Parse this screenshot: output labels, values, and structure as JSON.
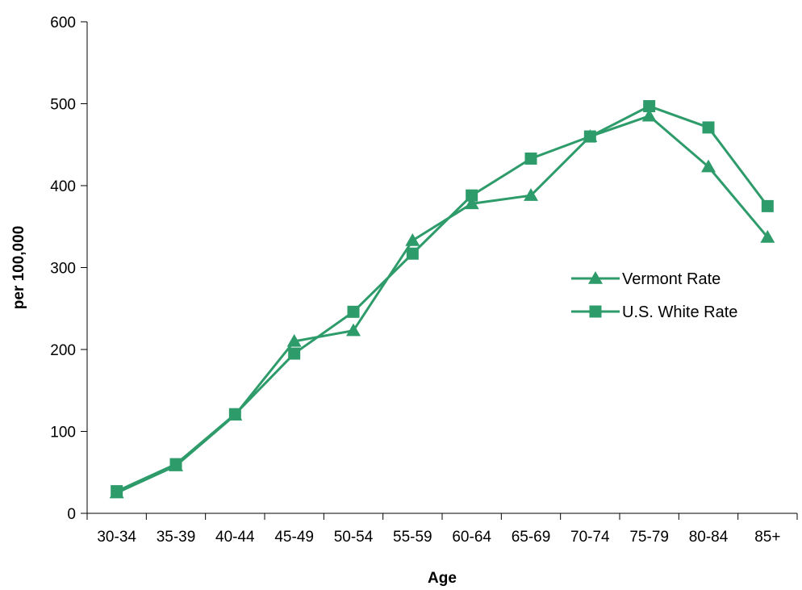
{
  "chart_data": {
    "type": "line",
    "xlabel": "Age",
    "ylabel": "per 100,000",
    "categories": [
      "30-34",
      "35-39",
      "40-44",
      "45-49",
      "50-54",
      "55-59",
      "60-64",
      "65-69",
      "70-74",
      "75-79",
      "80-84",
      "85+"
    ],
    "ylim": [
      0,
      600
    ],
    "yticks": [
      0,
      100,
      200,
      300,
      400,
      500,
      600
    ],
    "grid": false,
    "legend_position": "right",
    "series": [
      {
        "name": "Vermont Rate",
        "marker": "triangle",
        "color": "#2E9B6A",
        "values": [
          25,
          58,
          120,
          210,
          223,
          333,
          378,
          388,
          460,
          485,
          423,
          337
        ]
      },
      {
        "name": "U.S. White Rate",
        "marker": "square",
        "color": "#2E9B6A",
        "values": [
          27,
          60,
          121,
          195,
          246,
          317,
          388,
          433,
          460,
          497,
          471,
          375
        ]
      }
    ]
  }
}
